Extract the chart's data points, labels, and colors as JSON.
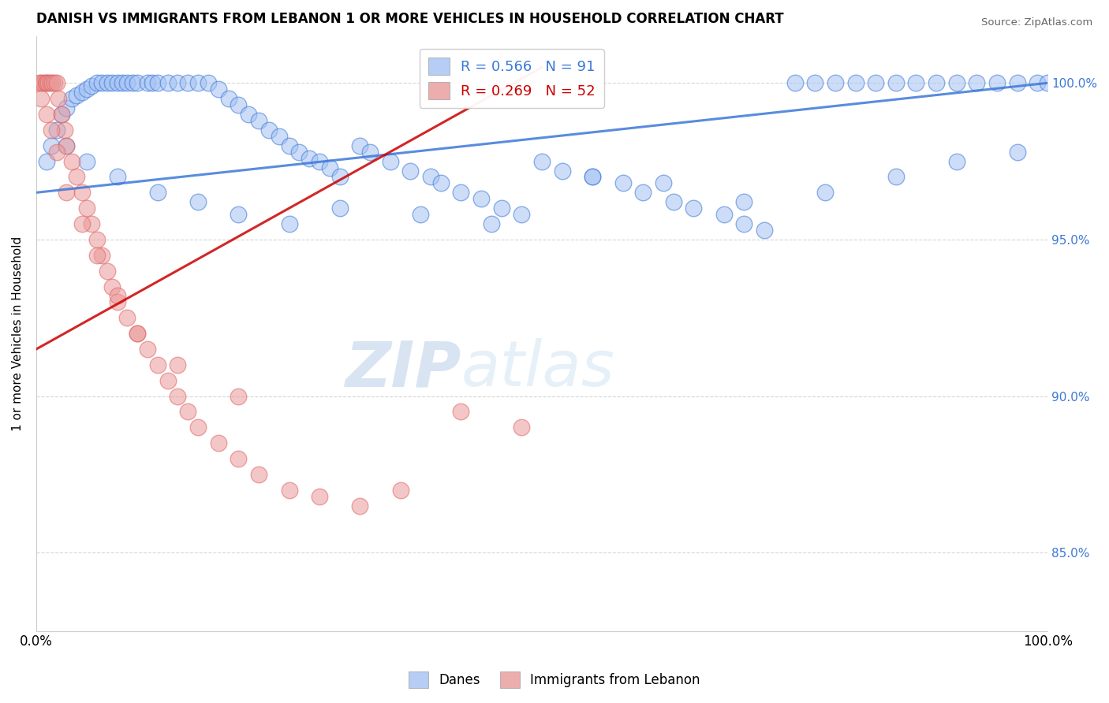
{
  "title": "DANISH VS IMMIGRANTS FROM LEBANON 1 OR MORE VEHICLES IN HOUSEHOLD CORRELATION CHART",
  "source": "Source: ZipAtlas.com",
  "ylabel": "1 or more Vehicles in Household",
  "x_min": 0.0,
  "x_max": 100.0,
  "y_min": 82.5,
  "y_max": 101.5,
  "right_y_ticks": [
    85.0,
    90.0,
    95.0,
    100.0
  ],
  "right_y_labels": [
    "85.0%",
    "90.0%",
    "95.0%",
    "100.0%"
  ],
  "x_ticks": [
    0.0,
    100.0
  ],
  "x_tick_labels": [
    "0.0%",
    "100.0%"
  ],
  "legend_blue_r": 0.566,
  "legend_blue_n": 91,
  "legend_pink_r": 0.269,
  "legend_pink_n": 52,
  "blue_color": "#a4c2f4",
  "pink_color": "#ea9999",
  "blue_line_color": "#3c78d8",
  "pink_line_color": "#cc0000",
  "watermark_zip": "ZIP",
  "watermark_atlas": "atlas",
  "danes_x": [
    1.0,
    1.5,
    2.0,
    2.5,
    3.0,
    3.5,
    4.0,
    4.5,
    5.0,
    5.5,
    6.0,
    6.5,
    7.0,
    7.5,
    8.0,
    8.5,
    9.0,
    9.5,
    10.0,
    11.0,
    11.5,
    12.0,
    13.0,
    14.0,
    15.0,
    16.0,
    17.0,
    18.0,
    19.0,
    20.0,
    21.0,
    22.0,
    23.0,
    24.0,
    25.0,
    26.0,
    27.0,
    28.0,
    29.0,
    30.0,
    32.0,
    33.0,
    35.0,
    37.0,
    39.0,
    40.0,
    42.0,
    44.0,
    46.0,
    48.0,
    50.0,
    52.0,
    55.0,
    58.0,
    60.0,
    63.0,
    65.0,
    68.0,
    70.0,
    72.0,
    75.0,
    77.0,
    79.0,
    81.0,
    83.0,
    85.0,
    87.0,
    89.0,
    91.0,
    93.0,
    95.0,
    97.0,
    99.0,
    3.0,
    5.0,
    8.0,
    12.0,
    16.0,
    20.0,
    25.0,
    30.0,
    38.0,
    45.0,
    55.0,
    62.0,
    70.0,
    78.0,
    85.0,
    91.0,
    97.0,
    100.0
  ],
  "danes_y": [
    97.5,
    98.0,
    98.5,
    99.0,
    99.2,
    99.5,
    99.6,
    99.7,
    99.8,
    99.9,
    100.0,
    100.0,
    100.0,
    100.0,
    100.0,
    100.0,
    100.0,
    100.0,
    100.0,
    100.0,
    100.0,
    100.0,
    100.0,
    100.0,
    100.0,
    100.0,
    100.0,
    99.8,
    99.5,
    99.3,
    99.0,
    98.8,
    98.5,
    98.3,
    98.0,
    97.8,
    97.6,
    97.5,
    97.3,
    97.0,
    98.0,
    97.8,
    97.5,
    97.2,
    97.0,
    96.8,
    96.5,
    96.3,
    96.0,
    95.8,
    97.5,
    97.2,
    97.0,
    96.8,
    96.5,
    96.2,
    96.0,
    95.8,
    95.5,
    95.3,
    100.0,
    100.0,
    100.0,
    100.0,
    100.0,
    100.0,
    100.0,
    100.0,
    100.0,
    100.0,
    100.0,
    100.0,
    100.0,
    98.0,
    97.5,
    97.0,
    96.5,
    96.2,
    95.8,
    95.5,
    96.0,
    95.8,
    95.5,
    97.0,
    96.8,
    96.2,
    96.5,
    97.0,
    97.5,
    97.8,
    100.0
  ],
  "lebanon_x": [
    0.3,
    0.5,
    0.7,
    0.9,
    1.0,
    1.2,
    1.4,
    1.6,
    1.8,
    2.0,
    2.2,
    2.5,
    2.8,
    3.0,
    3.5,
    4.0,
    4.5,
    5.0,
    5.5,
    6.0,
    6.5,
    7.0,
    7.5,
    8.0,
    9.0,
    10.0,
    11.0,
    12.0,
    13.0,
    14.0,
    15.0,
    16.0,
    18.0,
    20.0,
    22.0,
    25.0,
    28.0,
    32.0,
    36.0,
    42.0,
    48.0,
    0.5,
    1.0,
    1.5,
    2.0,
    3.0,
    4.5,
    6.0,
    8.0,
    10.0,
    14.0,
    20.0
  ],
  "lebanon_y": [
    100.0,
    100.0,
    100.0,
    100.0,
    100.0,
    100.0,
    100.0,
    100.0,
    100.0,
    100.0,
    99.5,
    99.0,
    98.5,
    98.0,
    97.5,
    97.0,
    96.5,
    96.0,
    95.5,
    95.0,
    94.5,
    94.0,
    93.5,
    93.0,
    92.5,
    92.0,
    91.5,
    91.0,
    90.5,
    90.0,
    89.5,
    89.0,
    88.5,
    88.0,
    87.5,
    87.0,
    86.8,
    86.5,
    87.0,
    89.5,
    89.0,
    99.5,
    99.0,
    98.5,
    97.8,
    96.5,
    95.5,
    94.5,
    93.2,
    92.0,
    91.0,
    90.0
  ],
  "blue_line_start_x": 0.0,
  "blue_line_start_y": 96.5,
  "blue_line_end_x": 100.0,
  "blue_line_end_y": 100.0,
  "pink_line_start_x": 0.0,
  "pink_line_start_y": 91.5,
  "pink_line_end_x": 50.0,
  "pink_line_end_y": 100.5
}
